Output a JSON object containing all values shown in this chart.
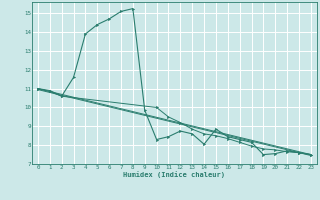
{
  "background_color": "#cce8e8",
  "grid_color": "#ffffff",
  "line_color": "#2a7d6e",
  "xlabel": "Humidex (Indice chaleur)",
  "xlim": [
    -0.5,
    23.5
  ],
  "ylim": [
    7,
    15.6
  ],
  "yticks": [
    7,
    8,
    9,
    10,
    11,
    12,
    13,
    14,
    15
  ],
  "xticks": [
    0,
    1,
    2,
    3,
    4,
    5,
    6,
    7,
    8,
    9,
    10,
    11,
    12,
    13,
    14,
    15,
    16,
    17,
    18,
    19,
    20,
    21,
    22,
    23
  ],
  "series0_x": [
    0,
    1,
    2,
    3,
    4,
    5,
    6,
    7,
    8,
    9,
    10,
    11,
    12,
    13,
    14,
    15,
    16,
    17,
    18,
    19,
    20,
    21,
    22,
    23
  ],
  "series0_y": [
    11.0,
    10.9,
    10.6,
    11.6,
    13.9,
    14.4,
    14.7,
    15.1,
    15.25,
    9.85,
    8.3,
    8.45,
    8.75,
    8.6,
    8.05,
    8.85,
    8.45,
    8.3,
    8.15,
    7.5,
    7.55,
    7.7,
    7.6,
    7.5
  ],
  "series1_x": [
    0,
    23
  ],
  "series1_y": [
    11.0,
    7.5
  ],
  "series2_x": [
    0,
    1,
    2,
    10,
    11,
    12,
    13,
    14,
    15,
    16,
    17,
    18,
    19,
    20,
    21,
    22,
    23
  ],
  "series2_y": [
    11.0,
    10.85,
    10.6,
    10.0,
    9.5,
    9.2,
    8.85,
    8.6,
    8.5,
    8.35,
    8.15,
    7.95,
    7.8,
    7.75,
    7.65,
    7.6,
    7.5
  ],
  "series3_x": [
    0,
    23
  ],
  "series3_y": [
    11.0,
    7.5
  ]
}
